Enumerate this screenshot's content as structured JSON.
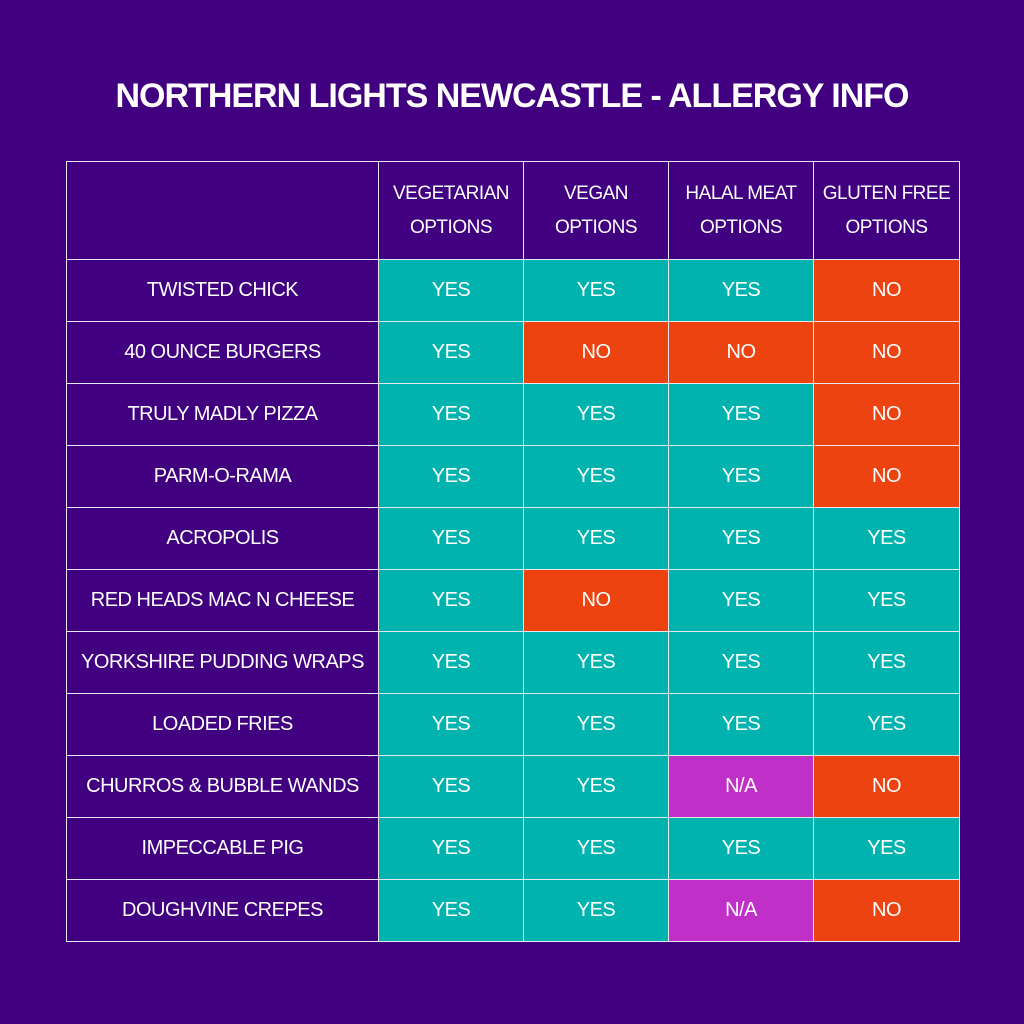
{
  "title": "NORTHERN LIGHTS NEWCASTLE - ALLERGY INFO",
  "colors": {
    "background": "#40007f",
    "yes": "#00b3ae",
    "no": "#ec4310",
    "na": "#c030c8"
  },
  "headers": [
    {
      "line1": "VEGETARIAN",
      "line2": "OPTIONS"
    },
    {
      "line1": "VEGAN",
      "line2": "OPTIONS"
    },
    {
      "line1": "HALAL MEAT",
      "line2": "OPTIONS"
    },
    {
      "line1": "GLUTEN FREE",
      "line2": "OPTIONS"
    }
  ],
  "rows": [
    {
      "name": "TWISTED CHICK",
      "values": [
        "YES",
        "YES",
        "YES",
        "NO"
      ]
    },
    {
      "name": "40 OUNCE BURGERS",
      "values": [
        "YES",
        "NO",
        "NO",
        "NO"
      ]
    },
    {
      "name": "TRULY MADLY PIZZA",
      "values": [
        "YES",
        "YES",
        "YES",
        "NO"
      ]
    },
    {
      "name": "PARM-O-RAMA",
      "values": [
        "YES",
        "YES",
        "YES",
        "NO"
      ]
    },
    {
      "name": "ACROPOLIS",
      "values": [
        "YES",
        "YES",
        "YES",
        "YES"
      ]
    },
    {
      "name": "RED HEADS MAC N CHEESE",
      "values": [
        "YES",
        "NO",
        "YES",
        "YES"
      ]
    },
    {
      "name": "YORKSHIRE PUDDING WRAPS",
      "values": [
        "YES",
        "YES",
        "YES",
        "YES"
      ]
    },
    {
      "name": "LOADED FRIES",
      "values": [
        "YES",
        "YES",
        "YES",
        "YES"
      ]
    },
    {
      "name": "CHURROS & BUBBLE WANDS",
      "values": [
        "YES",
        "YES",
        "N/A",
        "NO"
      ]
    },
    {
      "name": "IMPECCABLE PIG",
      "values": [
        "YES",
        "YES",
        "YES",
        "YES"
      ]
    },
    {
      "name": "DOUGHVINE CREPES",
      "values": [
        "YES",
        "YES",
        "N/A",
        "NO"
      ]
    }
  ]
}
